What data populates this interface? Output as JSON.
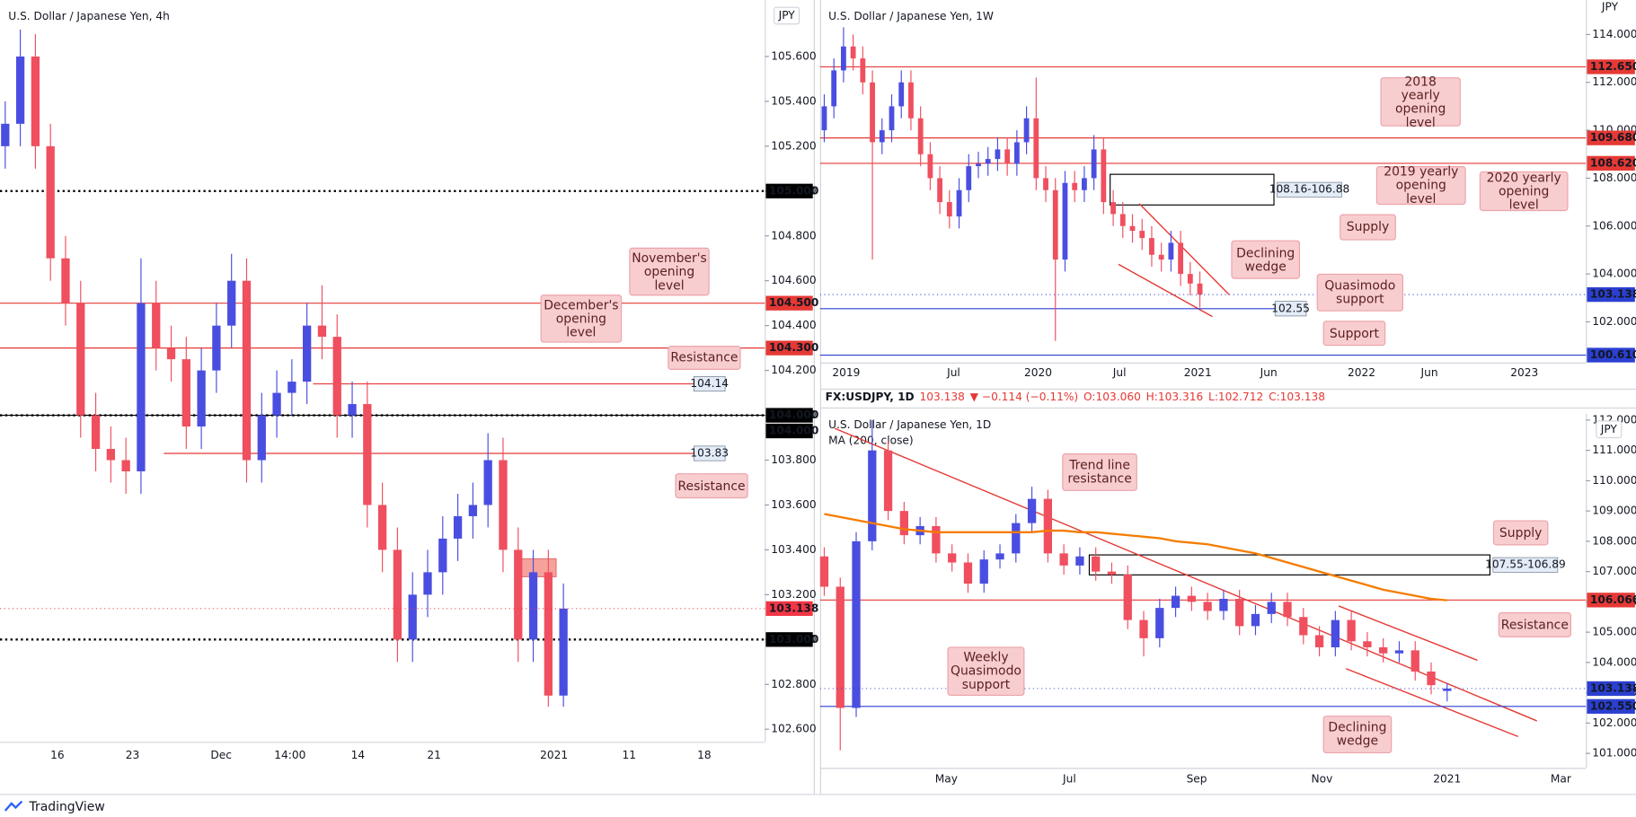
{
  "chart_data": [
    {
      "type": "candlestick",
      "title": "U.S. Dollar / Japanese Yen, 4h",
      "axis_unit": "JPY",
      "ylim": [
        102.544,
        105.852
      ],
      "yticks": [
        {
          "value": 102.6,
          "label": "102.600"
        },
        {
          "value": 102.8,
          "label": "102.800"
        },
        {
          "value": 103.0,
          "label": "103.000"
        },
        {
          "value": 103.2,
          "label": "103.200"
        },
        {
          "value": 103.4,
          "label": "103.400"
        },
        {
          "value": 103.6,
          "label": "103.600"
        },
        {
          "value": 103.8,
          "label": "103.800"
        },
        {
          "value": 104.0,
          "label": "104.000"
        },
        {
          "value": 104.2,
          "label": "104.200"
        },
        {
          "value": 104.4,
          "label": "104.400"
        },
        {
          "value": 104.6,
          "label": "104.600"
        },
        {
          "value": 104.8,
          "label": "104.800"
        },
        {
          "value": 105.0,
          "label": "105.000"
        },
        {
          "value": 105.2,
          "label": "105.200"
        },
        {
          "value": 105.4,
          "label": "105.400"
        },
        {
          "value": 105.6,
          "label": "105.600"
        }
      ],
      "xlabels": [
        "16",
        "23",
        "Dec",
        "14:00",
        "14",
        "21",
        "2021",
        "11",
        "18"
      ],
      "up_color": "#4a4ee0",
      "down_color": "#ef4f5f",
      "open": [
        105.2,
        105.3,
        105.6,
        105.2,
        104.7,
        104.5,
        104.0,
        103.85,
        103.8,
        103.75,
        104.5,
        104.3,
        104.25,
        103.95,
        104.2,
        104.4,
        104.6,
        103.8,
        104.0,
        104.1,
        104.15,
        104.4,
        104.35,
        104.0,
        104.05,
        103.6,
        103.4,
        103.0,
        103.2,
        103.3,
        103.45,
        103.55,
        103.6,
        103.8,
        103.4,
        103.0,
        103.3,
        102.75
      ],
      "high": [
        105.4,
        105.72,
        105.7,
        105.3,
        104.8,
        104.6,
        104.1,
        103.95,
        103.9,
        104.7,
        104.6,
        104.4,
        104.35,
        104.3,
        104.5,
        104.72,
        104.7,
        104.1,
        104.2,
        104.25,
        104.5,
        104.58,
        104.45,
        104.15,
        104.15,
        103.7,
        103.5,
        103.3,
        103.4,
        103.55,
        103.65,
        103.7,
        103.92,
        103.9,
        103.5,
        103.4,
        103.4,
        103.25
      ],
      "low": [
        105.1,
        105.2,
        105.1,
        104.6,
        104.4,
        103.9,
        103.75,
        103.7,
        103.65,
        103.65,
        104.2,
        104.15,
        103.85,
        103.85,
        104.1,
        104.3,
        103.7,
        103.7,
        103.9,
        104.0,
        104.05,
        104.25,
        103.9,
        103.9,
        103.5,
        103.3,
        102.9,
        102.9,
        103.1,
        103.2,
        103.35,
        103.45,
        103.5,
        103.3,
        102.9,
        102.9,
        102.7,
        102.7
      ],
      "close": [
        105.3,
        105.6,
        105.2,
        104.7,
        104.5,
        104.0,
        103.85,
        103.8,
        103.75,
        104.5,
        104.3,
        104.25,
        103.95,
        104.2,
        104.4,
        104.6,
        103.8,
        104.0,
        104.1,
        104.15,
        104.4,
        104.35,
        104.0,
        104.05,
        103.6,
        103.4,
        103.0,
        103.2,
        103.3,
        103.45,
        103.55,
        103.6,
        103.8,
        103.4,
        103.0,
        103.3,
        102.75,
        103.138
      ],
      "levels": [
        {
          "value": 105.0,
          "label": "105.000",
          "color": "#000000",
          "style": "dotted"
        },
        {
          "value": 104.5,
          "label": "104.500",
          "color": "#e53935",
          "style": "solid"
        },
        {
          "value": 104.3,
          "label": "104.300",
          "color": "#e53935",
          "style": "solid"
        },
        {
          "value": 104.0,
          "label": "104.000",
          "color": "#000000",
          "style": "dotted"
        },
        {
          "value": 104.0,
          "label": "104.000",
          "color": "#000000",
          "style": "solid"
        },
        {
          "value": 103.0,
          "label": "103.000",
          "color": "#000000",
          "style": "dotted"
        }
      ],
      "marked_levels": [
        {
          "value": 104.14,
          "color": "#e53935"
        },
        {
          "value": 103.83,
          "color": "#e53935"
        }
      ],
      "zone": {
        "values": [
          103.36,
          103.28
        ],
        "color": "#f28b82"
      },
      "last": {
        "value": 103.138,
        "color": "#f23645"
      },
      "annotations": [
        "November's opening level",
        "December's opening level",
        "Resistance",
        "Resistance"
      ]
    },
    {
      "type": "candlestick",
      "title": "U.S. Dollar / Japanese Yen, 1W",
      "axis_unit": "JPY",
      "ylim": [
        100.3,
        115.44
      ],
      "yticks": [
        {
          "value": 102,
          "label": "102.000"
        },
        {
          "value": 104,
          "label": "104.000"
        },
        {
          "value": 106,
          "label": "106.000"
        },
        {
          "value": 108,
          "label": "108.000"
        },
        {
          "value": 110,
          "label": "110.000"
        },
        {
          "value": 112,
          "label": "112.000"
        },
        {
          "value": 114,
          "label": "114.000"
        }
      ],
      "xlabels": [
        "2019",
        "Jul",
        "2020",
        "Jul",
        "2021",
        "Jun",
        "2022",
        "Jun",
        "2023"
      ],
      "up_color": "#4a4ee0",
      "down_color": "#ef4f5f",
      "open": [
        110.0,
        111.0,
        112.5,
        113.5,
        113.0,
        112.0,
        109.5,
        110.0,
        111.0,
        112.0,
        110.5,
        109.0,
        108.0,
        107.0,
        106.4,
        107.5,
        108.5,
        108.6,
        108.8,
        109.2,
        108.6,
        109.5,
        110.5,
        108.0,
        107.5,
        104.6,
        107.8,
        107.5,
        108.0,
        109.2,
        107.0,
        106.5,
        106.0,
        105.8,
        105.5,
        104.8,
        104.6,
        105.3,
        104.0,
        103.6
      ],
      "high": [
        111.5,
        113.0,
        114.3,
        114.0,
        113.5,
        112.5,
        110.5,
        111.5,
        112.5,
        112.5,
        111.0,
        109.5,
        108.5,
        107.5,
        108.0,
        109.0,
        109.1,
        109.3,
        109.7,
        109.7,
        110.0,
        111.0,
        112.2,
        108.5,
        108.0,
        108.3,
        108.3,
        108.5,
        109.8,
        109.7,
        107.5,
        107.0,
        106.5,
        106.3,
        106.0,
        105.3,
        105.8,
        105.8,
        104.5,
        104.1
      ],
      "low": [
        109.5,
        110.5,
        112.0,
        112.5,
        111.5,
        104.6,
        109.0,
        109.5,
        110.5,
        110.0,
        108.5,
        107.5,
        106.5,
        105.9,
        105.9,
        107.0,
        108.0,
        108.1,
        108.3,
        108.1,
        108.1,
        109.0,
        107.5,
        107.0,
        101.2,
        104.1,
        107.0,
        107.0,
        107.5,
        106.5,
        106.0,
        105.5,
        105.3,
        105.0,
        104.3,
        104.1,
        104.1,
        103.5,
        103.1,
        102.6
      ],
      "close": [
        111.0,
        112.5,
        113.5,
        113.0,
        112.0,
        109.5,
        110.0,
        111.0,
        112.0,
        110.5,
        109.0,
        108.0,
        107.0,
        106.4,
        107.5,
        108.5,
        108.6,
        108.8,
        109.2,
        108.6,
        109.5,
        110.5,
        108.0,
        107.5,
        104.6,
        107.8,
        107.5,
        108.0,
        109.2,
        107.0,
        106.5,
        106.0,
        105.8,
        105.5,
        104.8,
        104.6,
        105.3,
        104.0,
        103.6,
        103.138
      ],
      "levels": [
        {
          "value": 112.65,
          "label": "112.650",
          "color": "#e53935",
          "style": "solid"
        },
        {
          "value": 109.68,
          "label": "109.680",
          "color": "#e53935",
          "style": "solid"
        },
        {
          "value": 108.62,
          "label": "108.620",
          "color": "#e53935",
          "style": "solid"
        },
        {
          "value": 100.61,
          "label": "100.610",
          "color": "#2b3fd0",
          "style": "solid"
        }
      ],
      "marked_levels": [
        {
          "value": 102.55,
          "color": "#2b3fd0"
        }
      ],
      "zone": {
        "values": [
          108.16,
          106.88
        ],
        "label": "108.16-106.88",
        "color": "#000000"
      },
      "last": {
        "value": 103.138,
        "color": "#2b3fd0"
      },
      "annotations": [
        "2018 yearly opening level",
        "2019 yearly opening level",
        "2020 yearly opening level",
        "Supply",
        "Declining wedge",
        "Quasimodo support",
        "Support"
      ]
    },
    {
      "type": "candlestick",
      "title": "U.S. Dollar / Japanese Yen, 1D",
      "axis_unit": "JPY",
      "header": {
        "symbol": "FX:USDJPY, 1D",
        "last": "103.138",
        "change": "▼ −0.114 (−0.11%)",
        "open": "O:103.060",
        "high": "H:103.316",
        "low": "L:102.712",
        "close": "C:103.138"
      },
      "ylim": [
        100.52,
        112.21
      ],
      "yticks": [
        {
          "value": 101,
          "label": "101.000"
        },
        {
          "value": 102,
          "label": "102.000"
        },
        {
          "value": 103,
          "label": "103.000"
        },
        {
          "value": 104,
          "label": "104.000"
        },
        {
          "value": 105,
          "label": "105.000"
        },
        {
          "value": 106,
          "label": "106.000"
        },
        {
          "value": 107,
          "label": "107.000"
        },
        {
          "value": 108,
          "label": "108.000"
        },
        {
          "value": 109,
          "label": "109.000"
        },
        {
          "value": 110,
          "label": "110.000"
        },
        {
          "value": 111,
          "label": "111.000"
        },
        {
          "value": 112,
          "label": "112.000"
        }
      ],
      "xlabels": [
        "May",
        "Jul",
        "Sep",
        "Nov",
        "2021",
        "Mar"
      ],
      "up_color": "#4a4ee0",
      "down_color": "#ef4f5f",
      "open": [
        107.5,
        106.5,
        102.5,
        108.0,
        111.0,
        109.0,
        108.2,
        108.5,
        107.6,
        107.3,
        106.6,
        107.4,
        107.6,
        108.6,
        109.4,
        107.6,
        107.2,
        107.5,
        107.0,
        106.9,
        105.4,
        104.8,
        105.8,
        106.2,
        106.0,
        105.7,
        106.1,
        105.2,
        105.6,
        106.0,
        105.5,
        104.9,
        104.5,
        105.4,
        104.7,
        104.5,
        104.3,
        104.4,
        103.7,
        103.06
      ],
      "high": [
        107.8,
        106.8,
        108.3,
        112.0,
        111.3,
        109.3,
        108.8,
        108.8,
        107.9,
        107.6,
        107.7,
        107.9,
        108.9,
        109.8,
        109.7,
        107.9,
        107.8,
        107.8,
        107.3,
        107.2,
        105.7,
        106.1,
        106.5,
        106.5,
        106.3,
        106.4,
        106.4,
        105.9,
        106.3,
        106.3,
        105.8,
        105.2,
        105.7,
        105.7,
        105.0,
        104.8,
        104.7,
        104.7,
        104.0,
        103.316
      ],
      "low": [
        106.2,
        101.1,
        102.2,
        107.7,
        108.7,
        107.9,
        107.9,
        107.3,
        107.0,
        106.3,
        106.3,
        107.1,
        107.3,
        108.3,
        107.3,
        106.9,
        106.9,
        106.7,
        106.6,
        105.1,
        104.2,
        104.5,
        105.5,
        105.7,
        105.4,
        105.4,
        104.9,
        104.9,
        105.3,
        105.2,
        104.6,
        104.2,
        104.2,
        104.4,
        104.2,
        104.0,
        104.0,
        103.4,
        102.95,
        102.712
      ],
      "close": [
        106.5,
        102.5,
        108.0,
        111.0,
        109.0,
        108.2,
        108.5,
        107.6,
        107.3,
        106.6,
        107.4,
        107.6,
        108.6,
        109.4,
        107.6,
        107.2,
        107.5,
        107.0,
        106.9,
        105.4,
        104.8,
        105.8,
        106.2,
        106.0,
        105.7,
        106.1,
        105.2,
        105.6,
        106.0,
        105.5,
        104.9,
        104.5,
        105.4,
        104.7,
        104.5,
        104.3,
        104.4,
        103.7,
        103.25,
        103.138
      ],
      "indicator": {
        "name": "MA (200, close)",
        "color": "#f57c00",
        "values": [
          108.9,
          108.8,
          108.7,
          108.6,
          108.5,
          108.4,
          108.35,
          108.3,
          108.3,
          108.3,
          108.3,
          108.3,
          108.3,
          108.3,
          108.35,
          108.35,
          108.3,
          108.3,
          108.25,
          108.2,
          108.15,
          108.1,
          108.0,
          107.95,
          107.9,
          107.8,
          107.7,
          107.6,
          107.45,
          107.3,
          107.15,
          107.0,
          106.85,
          106.7,
          106.55,
          106.4,
          106.3,
          106.2,
          106.1,
          106.05
        ]
      },
      "levels": [
        {
          "value": 106.06,
          "label": "106.060",
          "color": "#e53935",
          "style": "solid"
        },
        {
          "value": 102.55,
          "label": "102.550",
          "color": "#2b3fd0",
          "style": "solid"
        }
      ],
      "marked_levels": [],
      "zone": {
        "values": [
          107.55,
          106.89
        ],
        "label": "107.55-106.89",
        "color": "#000000"
      },
      "last": {
        "value": 103.138,
        "color": "#2b3fd0"
      },
      "annotations": [
        "Trend line resistance",
        "Supply",
        "Resistance",
        "Weekly Quasimodo support",
        "Declining wedge"
      ]
    }
  ],
  "footer": {
    "brand": "TradingView"
  }
}
